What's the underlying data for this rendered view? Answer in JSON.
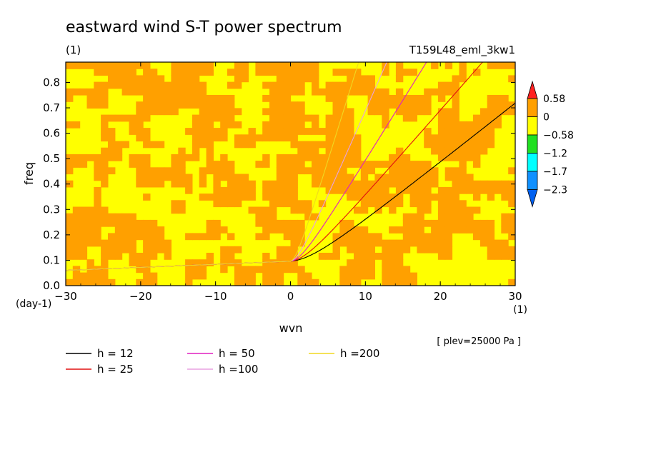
{
  "chart_data": {
    "type": "heatmap",
    "title": "eastward wind S-T power spectrum",
    "subtitle_left": "(1)",
    "subtitle_right": "T159L48_eml_3kw1",
    "xlabel": "wvn",
    "ylabel": "freq",
    "x_unit": "(1)",
    "y_unit": "(day-1)",
    "xlim": [
      -30,
      30
    ],
    "ylim": [
      0,
      0.88
    ],
    "x_ticks": [
      -30,
      -20,
      -10,
      0,
      10,
      20,
      30
    ],
    "y_ticks": [
      0.0,
      0.1,
      0.2,
      0.3,
      0.4,
      0.5,
      0.6,
      0.7,
      0.8
    ],
    "x_tick_labels": [
      "−30",
      "−20",
      "−10",
      "0",
      "10",
      "20",
      "30"
    ],
    "y_tick_labels": [
      "0.0",
      "0.1",
      "0.2",
      "0.3",
      "0.4",
      "0.5",
      "0.6",
      "0.7",
      "0.8"
    ],
    "note": "[ plev=25000 Pa ]",
    "colorbar": {
      "levels": [
        "0.58",
        "0",
        "−0.58",
        "−1.2",
        "−1.7",
        "−2.3"
      ],
      "colors": [
        "#ff2020",
        "#ffa000",
        "#ffff00",
        "#20e020",
        "#00ffff",
        "#1090ff",
        "#0060f0"
      ]
    },
    "field_colors": {
      "high": "#ffa000",
      "mid": "#ffff00"
    },
    "series": [
      {
        "name": "h = 12",
        "h": 12,
        "color": "#000000"
      },
      {
        "name": "h = 25",
        "h": 25,
        "color": "#e01010"
      },
      {
        "name": "h = 50",
        "h": 50,
        "color": "#e020c0"
      },
      {
        "name": "h =100",
        "h": 100,
        "color": "#e8a0e0"
      },
      {
        "name": "h =200",
        "h": 200,
        "color": "#f0d820"
      }
    ]
  }
}
